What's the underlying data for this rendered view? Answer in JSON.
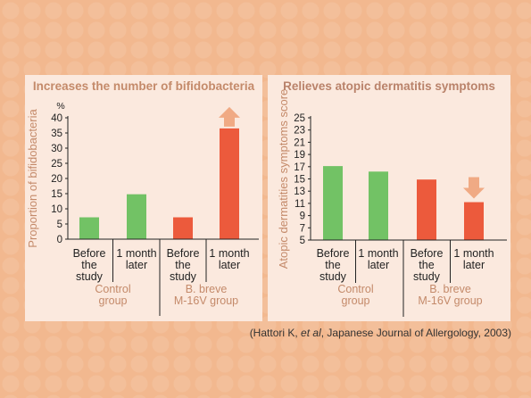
{
  "footnote": {
    "prefix": "(Hattori K, ",
    "italic": "et al",
    "suffix": ", Japanese Journal of Allergology, 2003)"
  },
  "colors": {
    "control": "#72c265",
    "bbreve": "#ec5a3c",
    "arrow": "#f0aa84",
    "axis": "#222222",
    "label_muted": "#c48a6a"
  },
  "chart_data": [
    {
      "type": "bar",
      "title": "Increases the number of bifidobacteria",
      "ylabel": "Proportion of bifidobacteria",
      "yunit": "%",
      "ylim": [
        0,
        40
      ],
      "yticks": [
        0,
        5,
        10,
        15,
        20,
        25,
        30,
        35,
        40
      ],
      "categories": [
        "Before the study",
        "1 month later",
        "Before the study",
        "1 month later"
      ],
      "category_lines": [
        [
          "Before",
          "the",
          "study"
        ],
        [
          "1 month",
          "later"
        ],
        [
          "Before",
          "the",
          "study"
        ],
        [
          "1 month",
          "later"
        ]
      ],
      "groups": [
        {
          "label_lines": [
            "Control",
            "group"
          ],
          "categories": [
            0,
            1
          ]
        },
        {
          "label_lines": [
            "B. breve",
            "M-16V group"
          ],
          "categories": [
            2,
            3
          ]
        }
      ],
      "values": [
        7.2,
        14.8,
        7.2,
        36.5
      ],
      "bar_colors": [
        "control",
        "control",
        "bbreve",
        "bbreve"
      ],
      "arrow": {
        "category": 3,
        "direction": "up"
      },
      "grid": false
    },
    {
      "type": "bar",
      "title": "Relieves atopic dermatitis symptoms",
      "ylabel": "Atopic dermatities symptoms score",
      "ylim": [
        5,
        25
      ],
      "yticks": [
        5,
        7,
        9,
        11,
        13,
        15,
        17,
        19,
        21,
        23,
        25
      ],
      "categories": [
        "Before the study",
        "1 month later",
        "Before the study",
        "1 month later"
      ],
      "category_lines": [
        [
          "Before",
          "the",
          "study"
        ],
        [
          "1 month",
          "later"
        ],
        [
          "Before",
          "the",
          "study"
        ],
        [
          "1 month",
          "later"
        ]
      ],
      "groups": [
        {
          "label_lines": [
            "Control",
            "group"
          ],
          "categories": [
            0,
            1
          ]
        },
        {
          "label_lines": [
            "B. breve",
            "M-16V group"
          ],
          "categories": [
            2,
            3
          ]
        }
      ],
      "values": [
        17.1,
        16.2,
        14.9,
        11.2
      ],
      "bar_colors": [
        "control",
        "control",
        "bbreve",
        "bbreve"
      ],
      "arrow": {
        "category": 3,
        "direction": "down"
      },
      "grid": false
    }
  ]
}
